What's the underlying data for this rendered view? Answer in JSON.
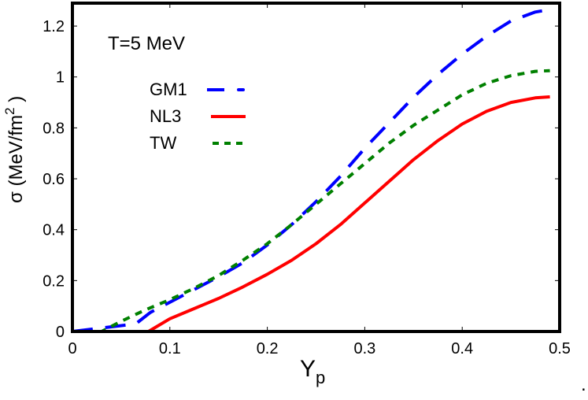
{
  "chart_data": {
    "type": "line",
    "title": "",
    "annotation": "T=5 MeV",
    "xlabel": "Y",
    "xlabel_sub": "p",
    "ylabel": "σ (MeV/fm",
    "ylabel_sup": "2",
    "ylabel_close": " )",
    "xlim": [
      0,
      0.5
    ],
    "ylim": [
      0,
      1.29
    ],
    "xticks": [
      "0",
      "0.1",
      "0.2",
      "0.3",
      "0.4",
      "0.5"
    ],
    "yticks": [
      "0",
      "0.2",
      "0.4",
      "0.6",
      "0.8",
      "1",
      "1.2"
    ],
    "grid": false,
    "legend_position": "upper-left",
    "trailing_mark": ".",
    "series": [
      {
        "name": "GM1",
        "color": "#0000ff",
        "style": "long-dash",
        "x": [
          0,
          0.065,
          0.08,
          0.1,
          0.125,
          0.15,
          0.175,
          0.2,
          0.225,
          0.25,
          0.275,
          0.3,
          0.325,
          0.35,
          0.375,
          0.4,
          0.425,
          0.45,
          0.475,
          0.49
        ],
        "y": [
          0,
          0.03,
          0.075,
          0.115,
          0.165,
          0.215,
          0.27,
          0.34,
          0.42,
          0.51,
          0.61,
          0.72,
          0.82,
          0.92,
          1.01,
          1.09,
          1.16,
          1.22,
          1.255,
          1.265
        ]
      },
      {
        "name": "NL3",
        "color": "#ff0000",
        "style": "solid",
        "x": [
          0,
          0.078,
          0.1,
          0.125,
          0.15,
          0.175,
          0.2,
          0.225,
          0.25,
          0.275,
          0.3,
          0.325,
          0.35,
          0.375,
          0.4,
          0.425,
          0.45,
          0.475,
          0.49
        ],
        "y": [
          0,
          0.0,
          0.05,
          0.09,
          0.13,
          0.175,
          0.225,
          0.28,
          0.345,
          0.42,
          0.505,
          0.59,
          0.675,
          0.75,
          0.815,
          0.865,
          0.9,
          0.918,
          0.922
        ]
      },
      {
        "name": "TW",
        "color": "#008000",
        "style": "short-dash",
        "x": [
          0,
          0.03,
          0.05,
          0.075,
          0.1,
          0.125,
          0.15,
          0.175,
          0.2,
          0.225,
          0.25,
          0.275,
          0.3,
          0.325,
          0.35,
          0.375,
          0.4,
          0.425,
          0.45,
          0.475,
          0.49
        ],
        "y": [
          0,
          0.0,
          0.04,
          0.085,
          0.125,
          0.17,
          0.22,
          0.28,
          0.345,
          0.42,
          0.5,
          0.58,
          0.66,
          0.74,
          0.81,
          0.87,
          0.93,
          0.975,
          1.005,
          1.022,
          1.025
        ]
      }
    ]
  }
}
